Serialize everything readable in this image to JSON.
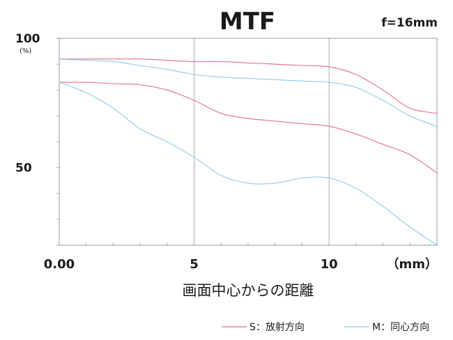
{
  "chart_data": {
    "type": "line",
    "title": "MTF",
    "subtitle": "f=16mm",
    "xlabel": "画面中心からの距離",
    "x_unit_label": "（mm）",
    "ylabel": "",
    "y_unit_label": "(%)",
    "xlim": [
      0,
      14
    ],
    "ylim": [
      0,
      100
    ],
    "x_ticks": [
      {
        "value": 0,
        "label": "0.00"
      },
      {
        "value": 5,
        "label": "5"
      },
      {
        "value": 10,
        "label": "10"
      }
    ],
    "y_ticks": [
      {
        "value": 100,
        "label": "100"
      },
      {
        "value": 50,
        "label": "50"
      }
    ],
    "grid_vertical_at": [
      5,
      10
    ],
    "colors": {
      "S": "#e07080",
      "M": "#8ec8e8",
      "axis": "#9a9a9a"
    },
    "legend": {
      "placement": "bottom-right",
      "entries": [
        {
          "key": "S",
          "label": "S：放射方向",
          "color": "#e07080"
        },
        {
          "key": "M",
          "label": "M：同心方向",
          "color": "#8ec8e8"
        }
      ]
    },
    "series": [
      {
        "group": "S",
        "frequency": "high",
        "points": [
          [
            0,
            92
          ],
          [
            1,
            92
          ],
          [
            2,
            92
          ],
          [
            3,
            92
          ],
          [
            4,
            91.5
          ],
          [
            5,
            91
          ],
          [
            6,
            91
          ],
          [
            7,
            90.5
          ],
          [
            8,
            90
          ],
          [
            9,
            89.5
          ],
          [
            10,
            89
          ],
          [
            11,
            86
          ],
          [
            12,
            80
          ],
          [
            13,
            73
          ],
          [
            14,
            71
          ]
        ]
      },
      {
        "group": "S",
        "frequency": "low",
        "points": [
          [
            0,
            83
          ],
          [
            1,
            83
          ],
          [
            2,
            82.5
          ],
          [
            3,
            82
          ],
          [
            4,
            80
          ],
          [
            5,
            76
          ],
          [
            6,
            71
          ],
          [
            7,
            69
          ],
          [
            8,
            68
          ],
          [
            9,
            67
          ],
          [
            10,
            66
          ],
          [
            11,
            63
          ],
          [
            12,
            59
          ],
          [
            13,
            55
          ],
          [
            14,
            48
          ]
        ]
      },
      {
        "group": "M",
        "frequency": "high",
        "points": [
          [
            0,
            92
          ],
          [
            1,
            91.5
          ],
          [
            2,
            91
          ],
          [
            3,
            89.5
          ],
          [
            4,
            88
          ],
          [
            5,
            86
          ],
          [
            6,
            85
          ],
          [
            7,
            84.5
          ],
          [
            8,
            84
          ],
          [
            9,
            83.5
          ],
          [
            10,
            83
          ],
          [
            11,
            81
          ],
          [
            12,
            76
          ],
          [
            13,
            70
          ],
          [
            14,
            66
          ]
        ]
      },
      {
        "group": "M",
        "frequency": "low",
        "points": [
          [
            0,
            83
          ],
          [
            1,
            79
          ],
          [
            2,
            73
          ],
          [
            3,
            65
          ],
          [
            4,
            60
          ],
          [
            5,
            54
          ],
          [
            6,
            47
          ],
          [
            7,
            44
          ],
          [
            8,
            44
          ],
          [
            9,
            46
          ],
          [
            10,
            46
          ],
          [
            11,
            42
          ],
          [
            12,
            35
          ],
          [
            13,
            27
          ],
          [
            14,
            20
          ]
        ]
      }
    ]
  }
}
